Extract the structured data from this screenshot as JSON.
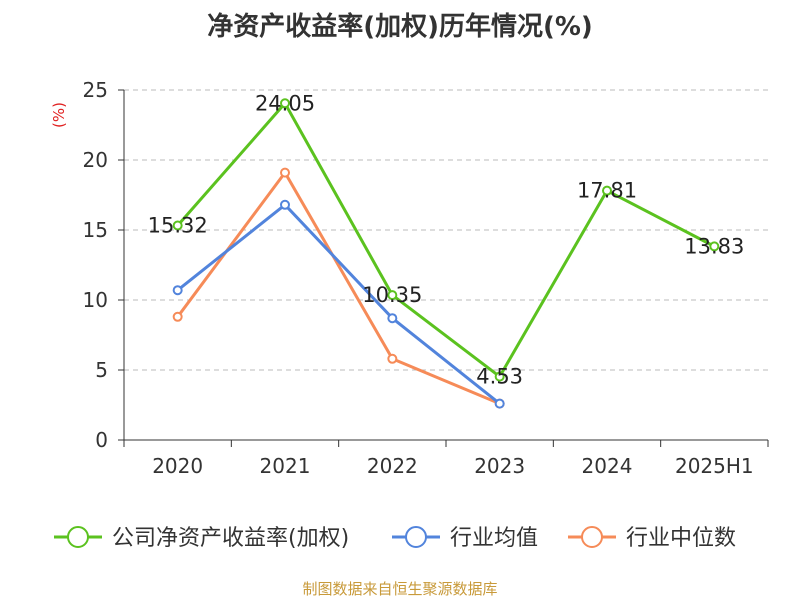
{
  "colors": {
    "roe": "#5bc21f",
    "industry_avg": "#5284dc",
    "industry_median": "#f68b58",
    "grid": "#bbbbbb",
    "axis": "#333333",
    "unit_label": "#e02020",
    "source": "#c89a3a"
  },
  "source_text": "制图数据来自恒生聚源数据库",
  "chart_data": {
    "type": "line",
    "title": "净资产收益率(加权)历年情况(%)",
    "ylabel": "(%)",
    "xlabel": "",
    "categories": [
      "2020",
      "2021",
      "2022",
      "2023",
      "2024",
      "2025H1"
    ],
    "ylim": [
      0,
      25
    ],
    "yticks": [
      0,
      5,
      10,
      15,
      20,
      25
    ],
    "grid": true,
    "legend_position": "bottom",
    "series": [
      {
        "name": "公司净资产收益率(加权)",
        "values": [
          15.32,
          24.05,
          10.35,
          4.53,
          17.81,
          13.83
        ],
        "labels": [
          "15.32",
          "24.05",
          "10.35",
          "4.53",
          "17.81",
          "13.83"
        ]
      },
      {
        "name": "行业均值",
        "values": [
          10.7,
          16.8,
          8.7,
          2.6,
          null,
          null
        ]
      },
      {
        "name": "行业中位数",
        "values": [
          8.8,
          19.1,
          5.8,
          2.6,
          null,
          null
        ]
      }
    ]
  }
}
